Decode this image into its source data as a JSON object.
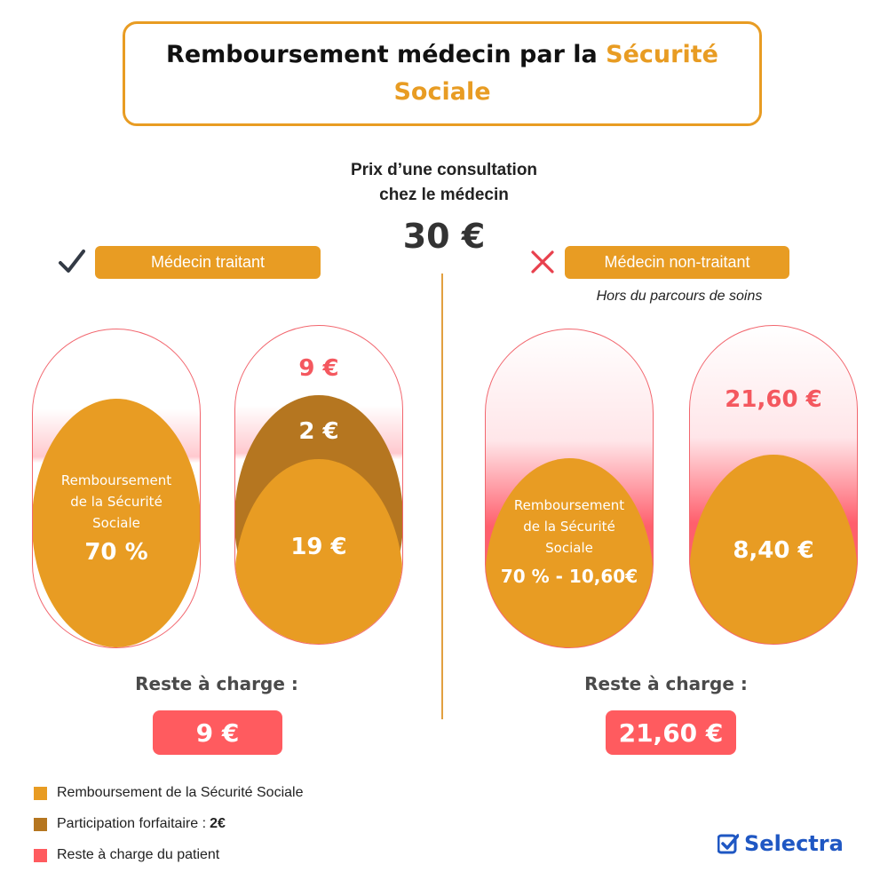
{
  "title": {
    "part1": "Remboursement médecin par la ",
    "accent": "Sécurité Sociale"
  },
  "consultation": {
    "caption_line1": "Prix d’une consultation",
    "caption_line2": "chez le médecin",
    "price": "30 €"
  },
  "left": {
    "icon": "check-icon",
    "tag": "Médecin traitant",
    "capsule1": {
      "line1": "Remboursement",
      "line2": "de la Sécurité",
      "line3": "Sociale",
      "value": "70 %"
    },
    "capsule2": {
      "top_value": "9 €",
      "participation": "2 €",
      "reimbursed": "19 €"
    },
    "reste_label": "Reste à charge :",
    "reste_value": "9 €"
  },
  "right": {
    "icon": "cross-icon",
    "tag": "Médecin non-traitant",
    "note": "Hors du parcours de soins",
    "capsule1": {
      "line1": "Remboursement",
      "line2": "de la Sécurité",
      "line3": "Sociale",
      "value": "70 % - 10,60€"
    },
    "capsule2": {
      "top_value": "21,60 €",
      "reimbursed": "8,40 €"
    },
    "reste_label": "Reste à charge :",
    "reste_value": "21,60 €"
  },
  "legend": [
    {
      "label": "Remboursement de la Sécurité Sociale",
      "strong": "",
      "color": "#e89c23"
    },
    {
      "label": "Participation forfaitaire : ",
      "strong": "2€",
      "color": "#b57620"
    },
    {
      "label": "Reste à charge du patient",
      "strong": "",
      "color": "#ff5b5f"
    }
  ],
  "brand": {
    "name": "Selectra",
    "color": "#1f57c3"
  },
  "colors": {
    "accent": "#e89c23",
    "participation": "#b57620",
    "reste": "#ff5b5f"
  }
}
